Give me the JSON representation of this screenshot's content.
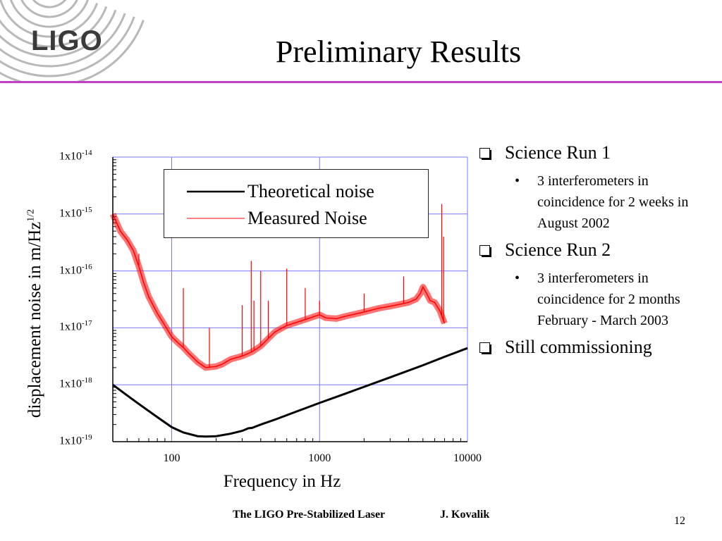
{
  "header": {
    "logo": "LIGO",
    "title": "Preliminary Results",
    "accent_color": "#c040c8"
  },
  "chart_data": {
    "type": "line",
    "x_scale": "log",
    "y_scale": "log",
    "xlim": [
      40,
      10000
    ],
    "ylim": [
      1e-19,
      1e-14
    ],
    "xlabel": "Frequency in Hz",
    "ylabel": "displacement noise in m/Hz",
    "ylabel_sup": "1/2",
    "x_ticks": [
      {
        "value": 100,
        "label": "100"
      },
      {
        "value": 1000,
        "label": "1000"
      },
      {
        "value": 10000,
        "label": "10000"
      }
    ],
    "y_ticks": [
      {
        "value": 1e-14,
        "base": "1x10",
        "exp": "-14"
      },
      {
        "value": 1e-15,
        "base": "1x10",
        "exp": "-15"
      },
      {
        "value": 1e-16,
        "base": "1x10",
        "exp": "-16"
      },
      {
        "value": 1e-17,
        "base": "1x10",
        "exp": "-17"
      },
      {
        "value": 1e-18,
        "base": "1x10",
        "exp": "-18"
      },
      {
        "value": 1e-19,
        "base": "1x10",
        "exp": "-19"
      }
    ],
    "grid": true,
    "legend_position": "top",
    "series": [
      {
        "name": "Theoretical noise",
        "color": "#000000",
        "x": [
          40,
          50,
          60,
          80,
          100,
          120,
          150,
          170,
          200,
          250,
          300,
          330,
          350,
          400,
          500,
          700,
          1000,
          1500,
          2000,
          3000,
          5000,
          7000,
          10000
        ],
        "y": [
          1e-18,
          6.5e-19,
          4.6e-19,
          2.7e-19,
          1.8e-19,
          1.45e-19,
          1.25e-19,
          1.23e-19,
          1.25e-19,
          1.38e-19,
          1.55e-19,
          1.72e-19,
          1.75e-19,
          2e-19,
          2.45e-19,
          3.4e-19,
          4.8e-19,
          7e-19,
          9.2e-19,
          1.35e-18,
          2.2e-18,
          3.1e-18,
          4.4e-18
        ]
      },
      {
        "name": "Measured Noise",
        "color": "#ff0000",
        "x": [
          40,
          45,
          50,
          55,
          60,
          65,
          70,
          80,
          90,
          100,
          110,
          120,
          130,
          150,
          170,
          200,
          220,
          250,
          300,
          350,
          400,
          450,
          500,
          600,
          700,
          800,
          900,
          1000,
          1100,
          1300,
          1500,
          2000,
          2500,
          3000,
          3500,
          4000,
          4500,
          4800,
          5000,
          5300,
          5600,
          6000,
          6500,
          7000
        ],
        "y": [
          1e-15,
          5e-16,
          3.5e-16,
          2.3e-16,
          1.2e-16,
          6e-17,
          3.5e-17,
          1.8e-17,
          1.1e-17,
          7e-18,
          5.5e-18,
          4.5e-18,
          3.6e-18,
          2.5e-18,
          2e-18,
          2.1e-18,
          2.3e-18,
          2.8e-18,
          3.2e-18,
          3.8e-18,
          4.8e-18,
          6.5e-18,
          8.5e-18,
          1.1e-17,
          1.25e-17,
          1.4e-17,
          1.55e-17,
          1.7e-17,
          1.5e-17,
          1.45e-17,
          1.6e-17,
          1.9e-17,
          2.2e-17,
          2.4e-17,
          2.6e-17,
          2.8e-17,
          3.2e-17,
          4e-17,
          5.2e-17,
          4e-17,
          3e-17,
          2.8e-17,
          2e-17,
          1.2e-17
        ],
        "spikes": [
          {
            "x": 40,
            "y": 3e-15
          },
          {
            "x": 60,
            "y": 2e-16
          },
          {
            "x": 120,
            "y": 5e-17
          },
          {
            "x": 180,
            "y": 1e-17
          },
          {
            "x": 300,
            "y": 2.5e-17
          },
          {
            "x": 345,
            "y": 1.5e-16
          },
          {
            "x": 360,
            "y": 3e-17
          },
          {
            "x": 400,
            "y": 1e-16
          },
          {
            "x": 450,
            "y": 3e-17
          },
          {
            "x": 600,
            "y": 1.1e-16
          },
          {
            "x": 800,
            "y": 5e-17
          },
          {
            "x": 1000,
            "y": 3e-17
          },
          {
            "x": 2000,
            "y": 4e-17
          },
          {
            "x": 3700,
            "y": 8e-17
          },
          {
            "x": 6700,
            "y": 1.5e-15
          },
          {
            "x": 6900,
            "y": 4e-16
          }
        ]
      }
    ]
  },
  "bullets": [
    {
      "text": "Science Run 1",
      "sub": [
        "3 interferometers in coincidence for 2 weeks in August 2002"
      ]
    },
    {
      "text": "Science Run 2",
      "sub": [
        "3 interferometers in coincidence for 2 months February - March 2003"
      ]
    },
    {
      "text": "Still commissioning",
      "sub": []
    }
  ],
  "footer": {
    "title": "The LIGO Pre-Stabilized Laser",
    "author": "J. Kovalik",
    "page": "12"
  }
}
